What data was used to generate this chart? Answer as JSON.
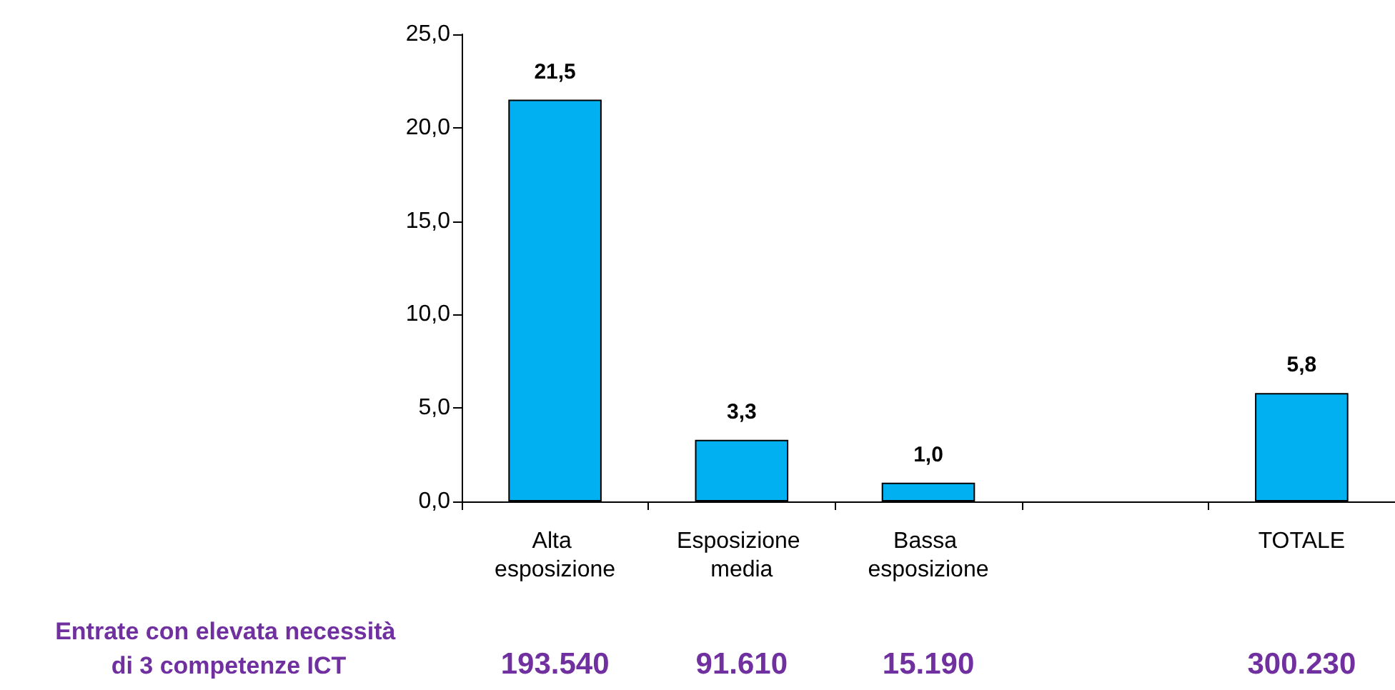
{
  "chart_data": {
    "type": "bar",
    "categories": [
      "Alta esposizione",
      "Esposizione media",
      "Bassa esposizione",
      null,
      "TOTALE"
    ],
    "values": [
      21.5,
      3.3,
      1.0,
      null,
      5.8
    ],
    "value_labels": [
      "21,5",
      "3,3",
      "1,0",
      null,
      "5,8"
    ],
    "color": "#00b0f0",
    "ylim": [
      0,
      25
    ],
    "yticks": [
      {
        "value": 0,
        "label": "0,0"
      },
      {
        "value": 5,
        "label": "5,0"
      },
      {
        "value": 10,
        "label": "10,0"
      },
      {
        "value": 15,
        "label": "15,0"
      },
      {
        "value": 20,
        "label": "20,0"
      },
      {
        "value": 25,
        "label": "25,0"
      }
    ],
    "grid": false,
    "annotations": [
      "Entrate con elevata necessità di 3 competenze ICT",
      "193.540",
      "91.610",
      "15.190",
      "300.230"
    ]
  }
}
